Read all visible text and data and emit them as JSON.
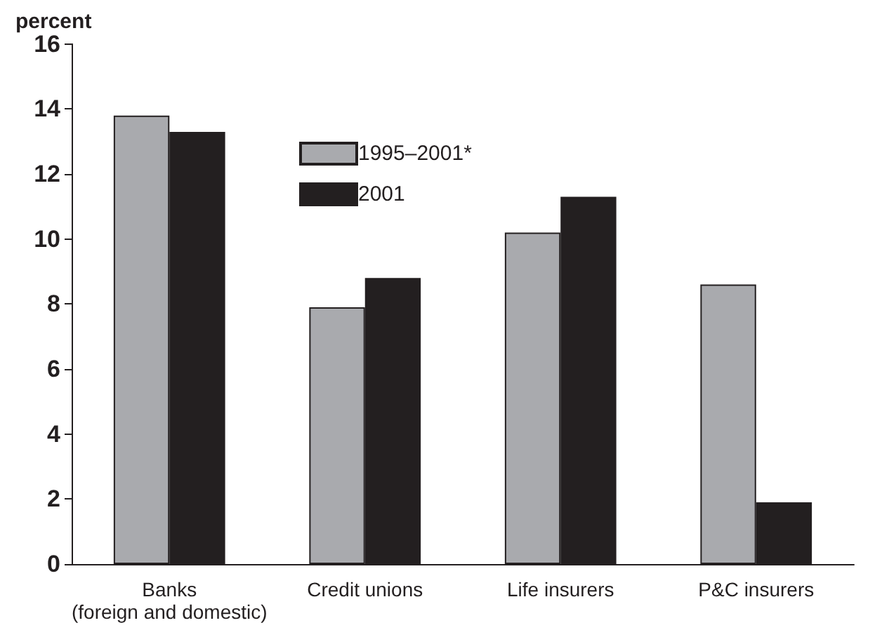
{
  "chart_data": {
    "type": "bar",
    "ylabel": "percent",
    "categories": [
      "Banks\n(foreign and domestic)",
      "Credit unions",
      "Life insurers",
      "P&C insurers"
    ],
    "series": [
      {
        "name": "1995–2001*",
        "color": "#a9aaae",
        "values": [
          13.8,
          7.9,
          10.2,
          8.6
        ]
      },
      {
        "name": "2001",
        "color": "#231f20",
        "values": [
          13.3,
          8.8,
          11.3,
          1.9
        ]
      }
    ],
    "ylim": [
      0,
      16
    ],
    "yticks": [
      0,
      2,
      4,
      6,
      8,
      10,
      12,
      14,
      16
    ],
    "grid": false,
    "legend": "top"
  }
}
